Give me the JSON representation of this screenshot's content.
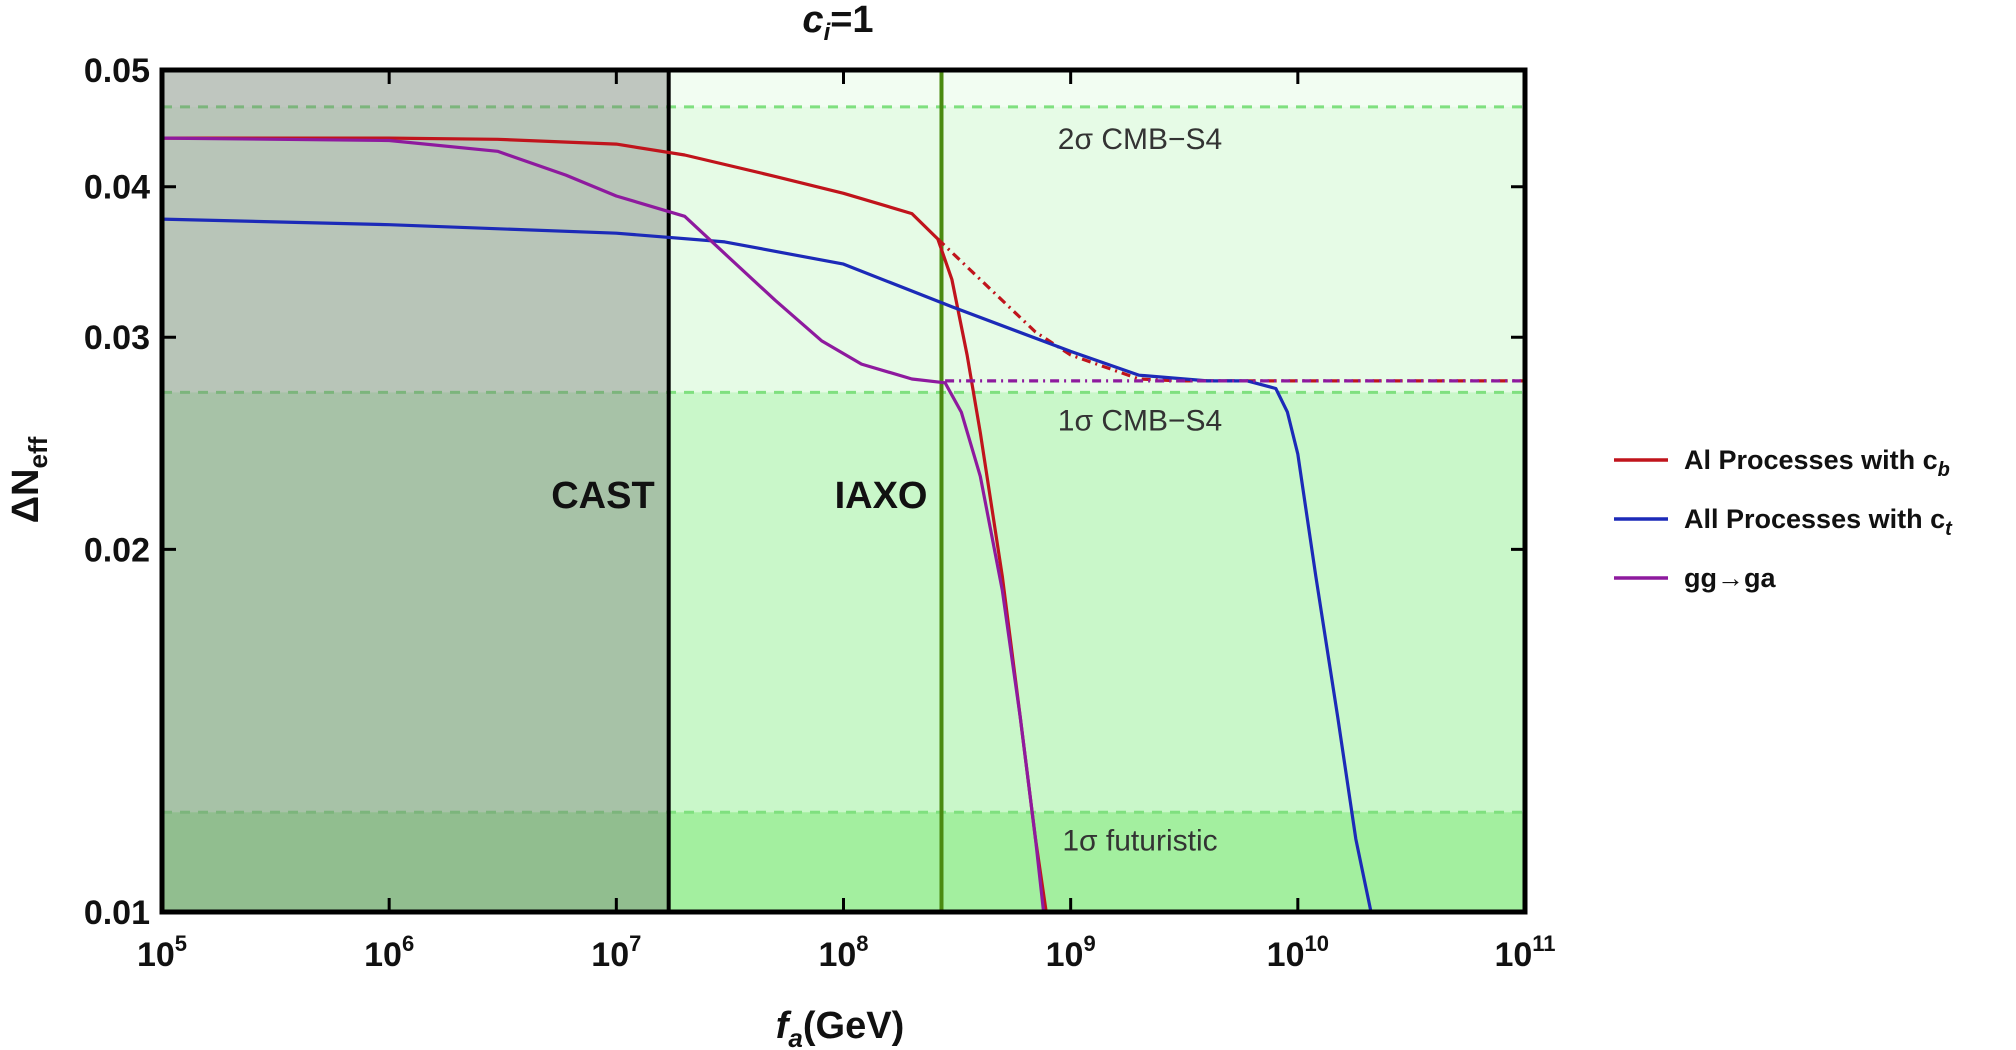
{
  "chart_data": {
    "type": "line",
    "title": "c_i=1",
    "title_main": "c",
    "title_sub": "i",
    "title_rest": "=1",
    "xlabel_main": "f",
    "xlabel_sub": "a",
    "xlabel_rest": "(GeV)",
    "ylabel_main": "ΔN",
    "ylabel_sub": "eff",
    "x_scale": "log",
    "y_scale": "log",
    "xlim": [
      100000,
      100000000000
    ],
    "ylim": [
      0.01,
      0.05
    ],
    "grid": false,
    "legend_position": "right",
    "x_ticks": [
      {
        "base": "10",
        "exp": "5",
        "value": 100000
      },
      {
        "base": "10",
        "exp": "6",
        "value": 1000000
      },
      {
        "base": "10",
        "exp": "7",
        "value": 10000000
      },
      {
        "base": "10",
        "exp": "8",
        "value": 100000000
      },
      {
        "base": "10",
        "exp": "9",
        "value": 1000000000
      },
      {
        "base": "10",
        "exp": "10",
        "value": 10000000000
      },
      {
        "base": "10",
        "exp": "11",
        "value": 100000000000
      }
    ],
    "y_ticks": [
      {
        "label": "0.01",
        "value": 0.01
      },
      {
        "label": "0.02",
        "value": 0.02
      },
      {
        "label": "0.03",
        "value": 0.03
      },
      {
        "label": "0.04",
        "value": 0.04
      },
      {
        "label": "0.05",
        "value": 0.05
      }
    ],
    "bands": [
      {
        "label": "2σ CMB−S4",
        "y": 0.0466,
        "color": "#e6fbe6"
      },
      {
        "label": "1σ CMB−S4",
        "y": 0.027,
        "color": "#c9f7c9"
      },
      {
        "label": "1σ futuristic",
        "y": 0.0121,
        "color": "#a3ef9f"
      }
    ],
    "excluded_regions": [
      {
        "label": "CAST",
        "x_max": 17000000,
        "line_color": "#000000",
        "fill": "#7a7a7a"
      },
      {
        "label": "IAXO",
        "x_max": 270000000,
        "line_color": "#4a8a10"
      }
    ],
    "series": [
      {
        "name": "Al Processes with c",
        "name_sub": "b",
        "color": "#c0141c",
        "x": [
          100000,
          1000000,
          3000000,
          10000000,
          20000000,
          50000000,
          100000000,
          200000000,
          260000000,
          300000000,
          350000000,
          400000000,
          500000000,
          600000000,
          700000000,
          780000000
        ],
        "y": [
          0.0439,
          0.0439,
          0.0438,
          0.0434,
          0.0425,
          0.0408,
          0.0395,
          0.038,
          0.0362,
          0.0335,
          0.029,
          0.025,
          0.019,
          0.0145,
          0.0115,
          0.01
        ]
      },
      {
        "name": "Al Processes with c (dot-dashed)",
        "color": "#c0141c",
        "x": [
          260000000,
          400000000,
          700000000,
          1000000000,
          2000000000,
          3000000000,
          10000000000,
          100000000000
        ],
        "y": [
          0.0362,
          0.0335,
          0.0303,
          0.029,
          0.0277,
          0.0276,
          0.0276,
          0.0276
        ]
      },
      {
        "name": "All Processes with c",
        "name_sub": "t",
        "color": "#1c2ab8",
        "x": [
          100000,
          1000000,
          10000000,
          30000000,
          100000000,
          300000000,
          1000000000,
          2000000000,
          4000000000,
          6000000000,
          8000000000,
          9000000000,
          10000000000,
          12000000000,
          15000000000,
          18000000000,
          21000000000
        ],
        "y": [
          0.0376,
          0.0372,
          0.0366,
          0.036,
          0.0345,
          0.0318,
          0.0292,
          0.0279,
          0.0276,
          0.0276,
          0.0272,
          0.026,
          0.024,
          0.019,
          0.0145,
          0.0115,
          0.01
        ]
      },
      {
        "name": "gg→ga",
        "color": "#8e1a9e",
        "x": [
          100000,
          1000000,
          3000000,
          6000000,
          10000000,
          20000000,
          30000000,
          50000000,
          80000000,
          120000000,
          200000000,
          280000000,
          330000000,
          400000000,
          500000000,
          600000000,
          700000000,
          760000000
        ],
        "y": [
          0.0439,
          0.0437,
          0.0428,
          0.0409,
          0.0393,
          0.0378,
          0.0352,
          0.0322,
          0.0298,
          0.0285,
          0.0277,
          0.0275,
          0.026,
          0.023,
          0.0185,
          0.0145,
          0.0115,
          0.01
        ]
      },
      {
        "name": "gg→ga (dot-dashed)",
        "color": "#8e1a9e",
        "x": [
          280000000,
          1000000000,
          10000000000,
          100000000000
        ],
        "y": [
          0.0276,
          0.0276,
          0.0276,
          0.0276
        ]
      }
    ],
    "legend": [
      {
        "label": "Al Processes with c",
        "sub": "b",
        "color": "#c0141c"
      },
      {
        "label": "All Processes with c",
        "sub": "t",
        "color": "#1c2ab8"
      },
      {
        "label": "gg→ga",
        "sub": "",
        "color": "#8e1a9e"
      }
    ]
  }
}
